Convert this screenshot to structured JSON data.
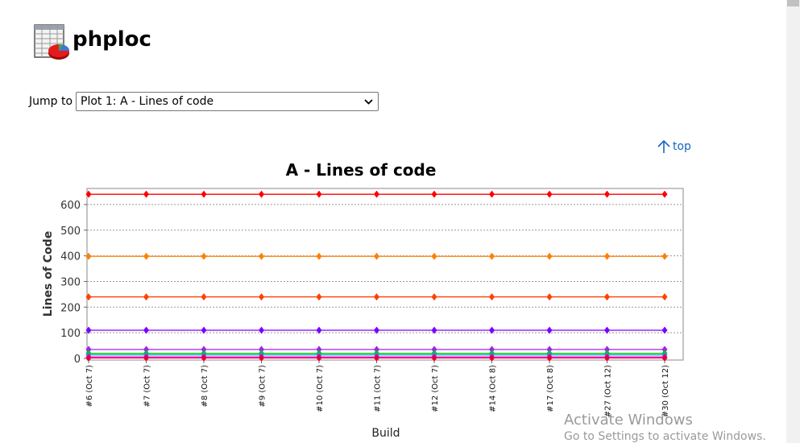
{
  "page": {
    "title": "phploc",
    "jump_label": "Jump to",
    "jump_selected": "Plot 1: A - Lines of code",
    "top_link": "top"
  },
  "icons": {
    "app": "spreadsheet-pie-chart-icon",
    "select_chevron": "chevron-down-icon",
    "top": "arrow-up-icon"
  },
  "overlay": {
    "activate_title": "Activate Windows",
    "activate_sub": "Go to Settings to activate Windows."
  },
  "chart_data": {
    "type": "line",
    "title": "A - Lines of code",
    "xlabel": "Build",
    "ylabel": "Lines of Code",
    "categories": [
      "#6 (Oct 7)",
      "#7 (Oct 7)",
      "#8 (Oct 7)",
      "#9 (Oct 7)",
      "#10 (Oct 7)",
      "#11 (Oct 7)",
      "#12 (Oct 7)",
      "#14 (Oct 8)",
      "#17 (Oct 8)",
      "#27 (Oct 12)",
      "#30 (Oct 12)"
    ],
    "ylim": [
      0,
      650
    ],
    "yticks": [
      0,
      100,
      200,
      300,
      400,
      500,
      600
    ],
    "grid": true,
    "legend": "none",
    "series": [
      {
        "color": "#ff0000",
        "values": [
          640,
          640,
          640,
          640,
          640,
          640,
          640,
          640,
          640,
          640,
          640
        ]
      },
      {
        "color": "#ff8000",
        "values": [
          398,
          398,
          398,
          398,
          398,
          398,
          398,
          398,
          398,
          398,
          398
        ]
      },
      {
        "color": "#ff4000",
        "values": [
          240,
          240,
          240,
          240,
          240,
          240,
          240,
          240,
          240,
          240,
          240
        ]
      },
      {
        "color": "#7b00ff",
        "values": [
          110,
          110,
          110,
          110,
          110,
          110,
          110,
          110,
          110,
          110,
          110
        ]
      },
      {
        "color": "#a020f0",
        "values": [
          35,
          35,
          35,
          35,
          35,
          35,
          35,
          35,
          35,
          35,
          35
        ]
      },
      {
        "color": "#00c000",
        "values": [
          20,
          20,
          20,
          20,
          20,
          20,
          20,
          20,
          20,
          20,
          20
        ]
      },
      {
        "color": "#00b0b0",
        "values": [
          14,
          14,
          14,
          14,
          14,
          14,
          14,
          14,
          14,
          14,
          14
        ]
      },
      {
        "color": "#ff00ff",
        "values": [
          6,
          6,
          6,
          6,
          6,
          6,
          6,
          6,
          6,
          6,
          6
        ]
      },
      {
        "color": "#e0003c",
        "values": [
          2,
          2,
          2,
          2,
          2,
          2,
          2,
          2,
          2,
          2,
          2
        ]
      }
    ]
  }
}
